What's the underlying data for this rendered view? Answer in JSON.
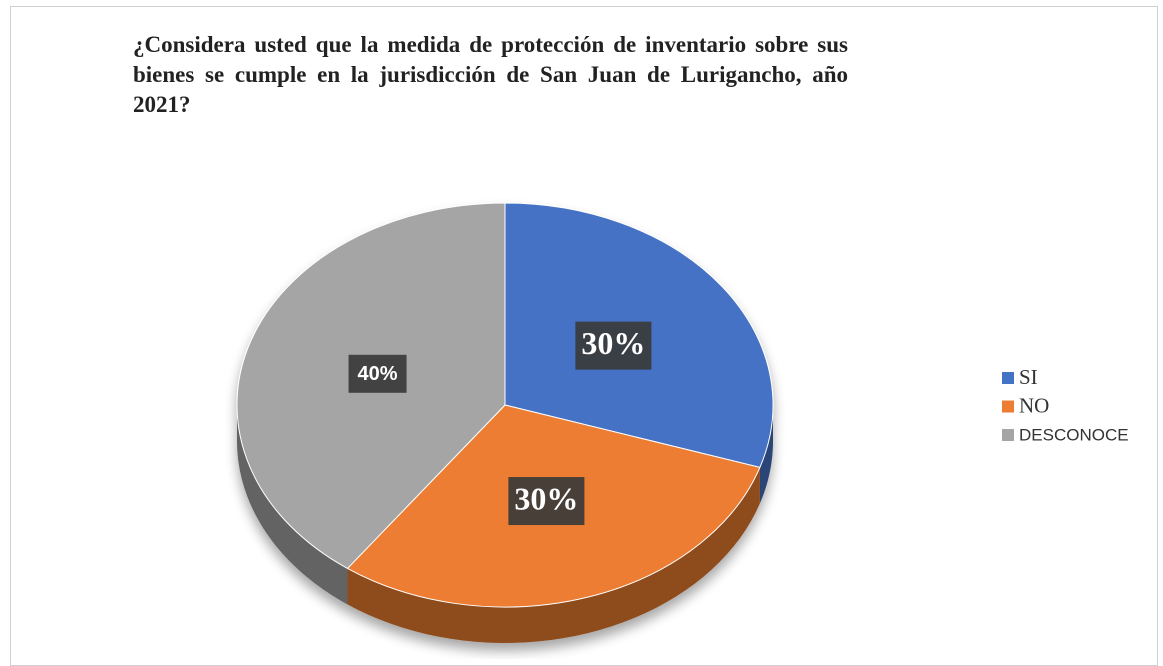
{
  "chart_data": {
    "type": "pie",
    "title": "¿Considera usted que la medida de protección de inventario sobre sus bienes se cumple en la jurisdicción de San Juan de Lurigancho, año 2021?",
    "categories": [
      "SI",
      "NO",
      "DESCONOCE"
    ],
    "values": [
      30,
      30,
      40
    ],
    "value_labels": [
      "30%",
      "30%",
      "40%"
    ],
    "colors": [
      "#4472c4",
      "#ed7d31",
      "#a5a5a5"
    ],
    "legend": "right"
  }
}
